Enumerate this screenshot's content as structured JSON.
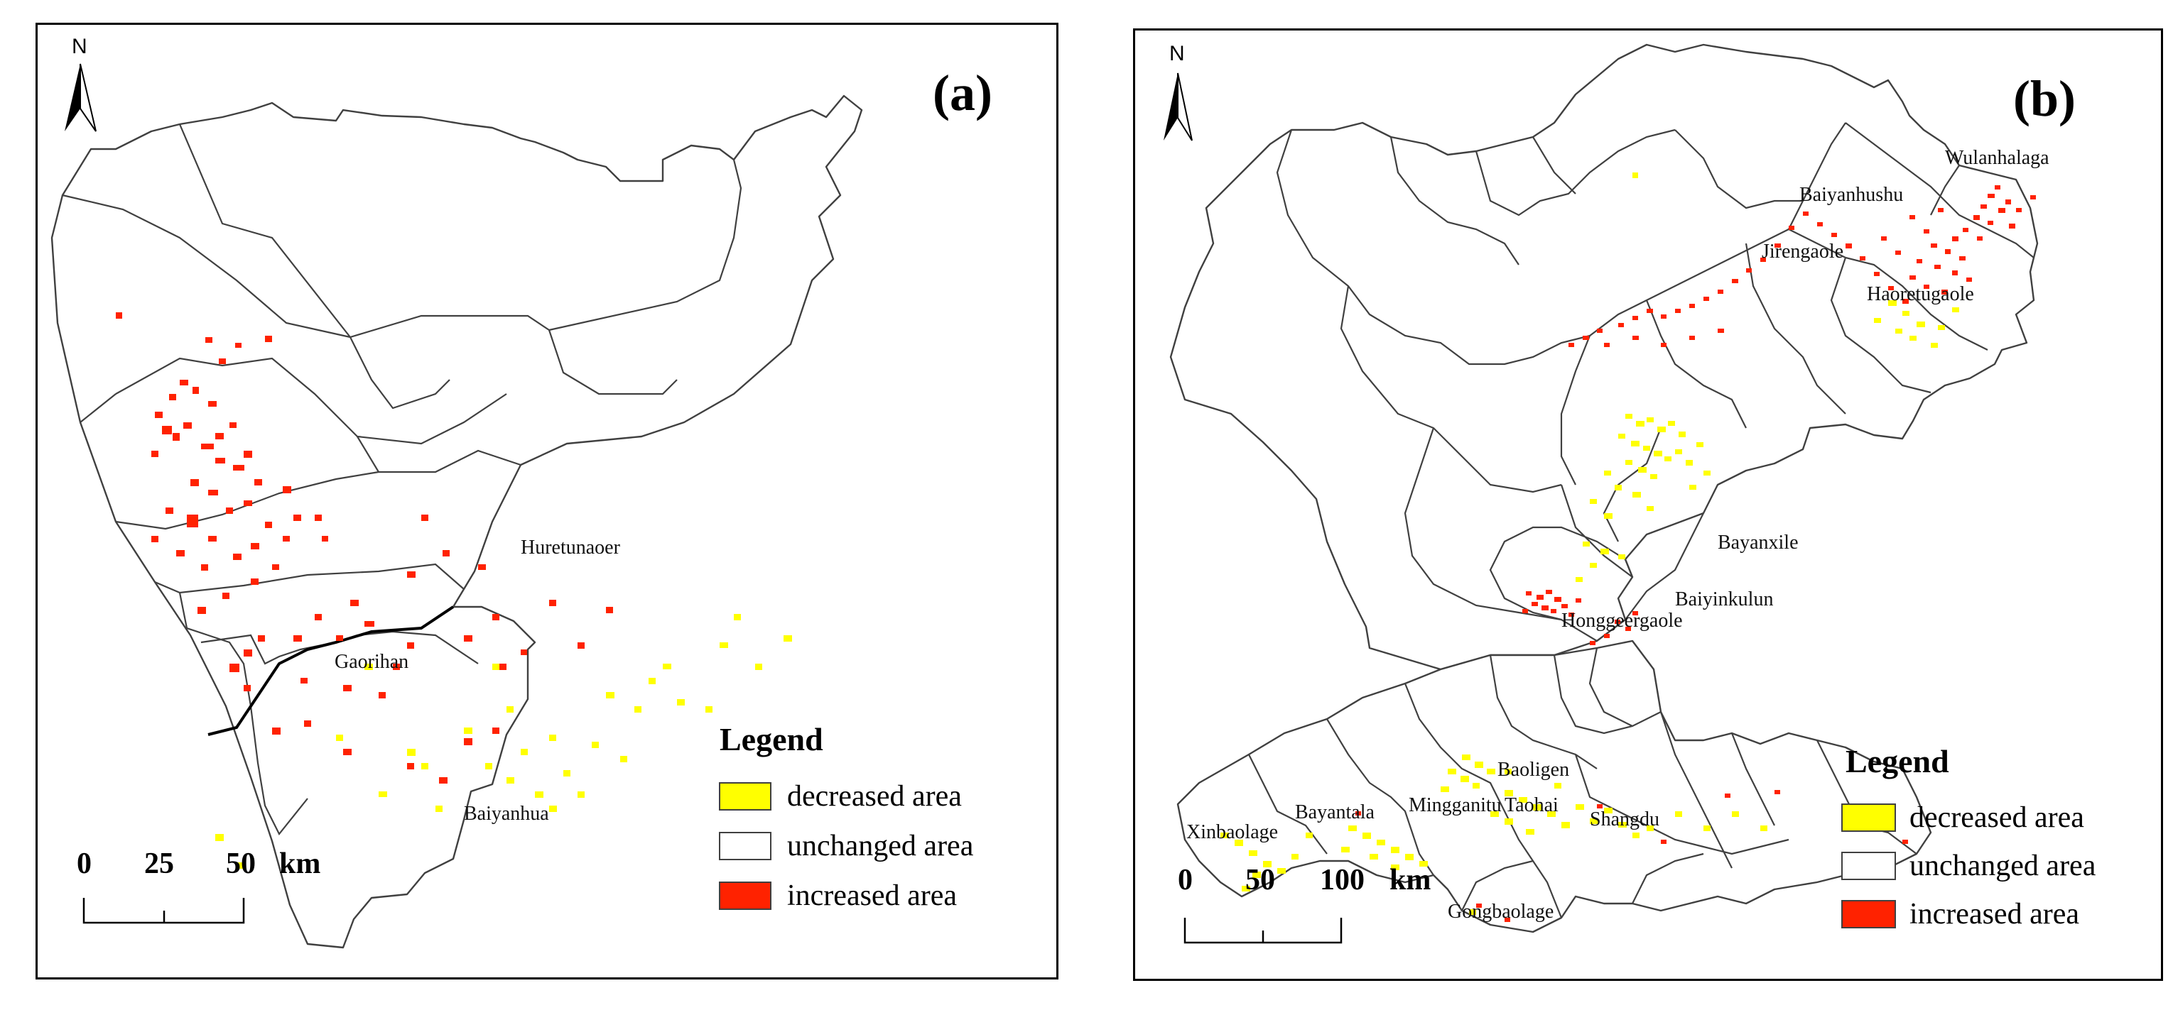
{
  "colors": {
    "decreased": "#ffff00",
    "unchanged": "#ffffff",
    "increased": "#ff2200",
    "border": "#404040"
  },
  "panel_a": {
    "label": "(a)",
    "north": "N",
    "places": [
      "Huretunaoer",
      "Gaorihan",
      "Baiyanhua"
    ],
    "legend": {
      "title": "Legend",
      "items": [
        "decreased area",
        "unchanged area",
        "increased area"
      ]
    },
    "scale": {
      "ticks": [
        "0",
        "25",
        "50"
      ],
      "unit": "km"
    }
  },
  "panel_b": {
    "label": "(b)",
    "north": "N",
    "places": [
      "Wulanhalaga",
      "Baiyanhushu",
      "Jirengaole",
      "Haoretugaole",
      "Bayanxile",
      "Baiyinkulun",
      "Honggeergaole",
      "Baoligen",
      "Mingganitu",
      "Taohai",
      "Shangdu",
      "Bayantala",
      "Xinbaolage",
      "Gongbaolage"
    ],
    "legend": {
      "title": "Legend",
      "items": [
        "decreased area",
        "unchanged area",
        "increased area"
      ]
    },
    "scale": {
      "ticks": [
        "0",
        "50",
        "100"
      ],
      "unit": "km"
    }
  }
}
